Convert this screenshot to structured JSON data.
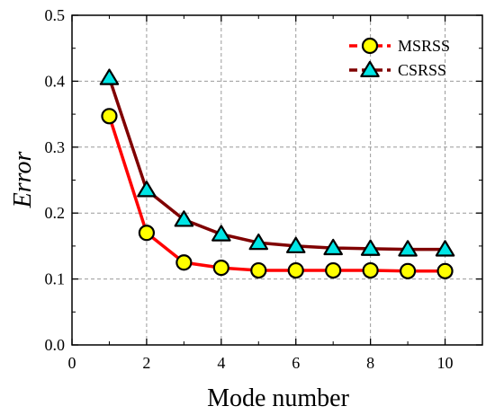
{
  "chart_data": {
    "type": "line",
    "xlabel": "Mode number",
    "ylabel": "Error",
    "xlim": [
      0,
      11
    ],
    "ylim": [
      0,
      0.5
    ],
    "xticks": [
      0,
      2,
      4,
      6,
      8,
      10
    ],
    "yticks": [
      0.0,
      0.1,
      0.2,
      0.3,
      0.4,
      0.5
    ],
    "xtick_labels": [
      "0",
      "2",
      "4",
      "6",
      "8",
      "10"
    ],
    "ytick_labels": [
      "0.0",
      "0.1",
      "0.2",
      "0.3",
      "0.4",
      "0.5"
    ],
    "grid": true,
    "legend_position": "top-right",
    "x": [
      1,
      2,
      3,
      4,
      5,
      6,
      7,
      8,
      9,
      10
    ],
    "series": [
      {
        "name": "MSRSS",
        "values": [
          0.347,
          0.17,
          0.125,
          0.117,
          0.113,
          0.113,
          0.113,
          0.113,
          0.112,
          0.112
        ],
        "line_color": "#ff0000",
        "marker": "circle",
        "marker_fill": "#ffff00"
      },
      {
        "name": "CSRSS",
        "values": [
          0.405,
          0.235,
          0.19,
          0.168,
          0.155,
          0.15,
          0.147,
          0.146,
          0.145,
          0.145
        ],
        "line_color": "#800000",
        "marker": "triangle",
        "marker_fill": "#00e5e5"
      }
    ]
  }
}
